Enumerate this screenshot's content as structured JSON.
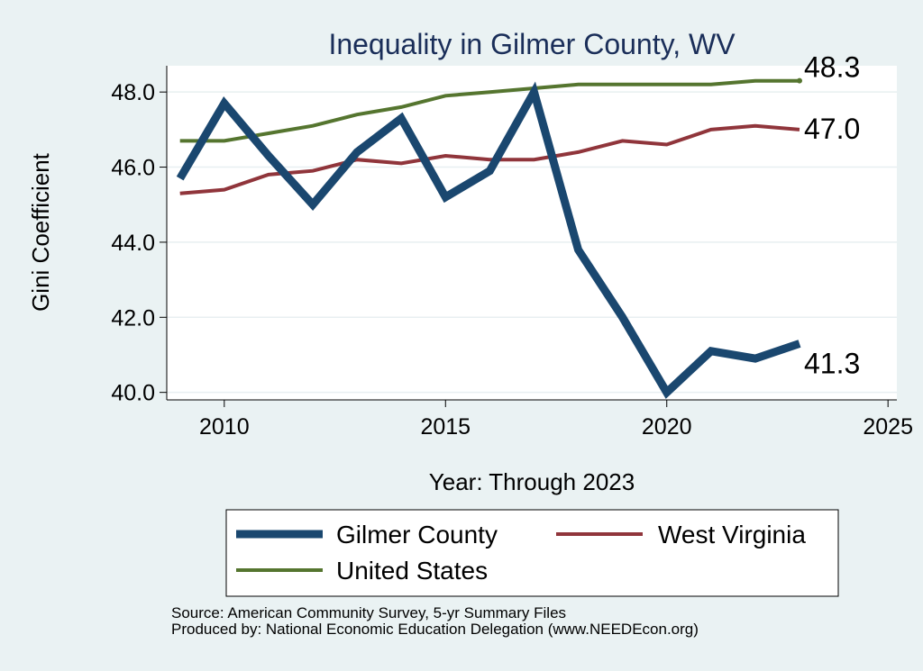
{
  "chart_data": {
    "type": "line",
    "title": "Inequality in Gilmer County, WV",
    "xlabel": "Year: Through 2023",
    "ylabel": "Gini Coefficient",
    "xlim": [
      2008.7,
      2025.2
    ],
    "ylim": [
      39.8,
      48.7
    ],
    "xticks": [
      2010,
      2015,
      2020,
      2025
    ],
    "yticks": [
      40.0,
      42.0,
      44.0,
      46.0,
      48.0
    ],
    "grid": true,
    "legend_position": "bottom",
    "x": [
      2009,
      2010,
      2011,
      2012,
      2013,
      2014,
      2015,
      2016,
      2017,
      2018,
      2019,
      2020,
      2021,
      2022,
      2023
    ],
    "series": [
      {
        "name": "Gilmer County",
        "color": "#1a476f",
        "values": [
          45.7,
          47.7,
          46.3,
          45.0,
          46.4,
          47.3,
          45.2,
          45.9,
          48.0,
          43.8,
          42.0,
          40.0,
          41.1,
          40.9,
          41.3
        ],
        "end_label": "41.3"
      },
      {
        "name": "West Virginia",
        "color": "#90353b",
        "values": [
          45.3,
          45.4,
          45.8,
          45.9,
          46.2,
          46.1,
          46.3,
          46.2,
          46.2,
          46.4,
          46.7,
          46.6,
          47.0,
          47.1,
          47.0
        ],
        "end_label": "47.0"
      },
      {
        "name": "United States",
        "color": "#55752f",
        "values": [
          46.7,
          46.7,
          46.9,
          47.1,
          47.4,
          47.6,
          47.9,
          48.0,
          48.1,
          48.2,
          48.2,
          48.2,
          48.2,
          48.3,
          48.3
        ],
        "end_label": "48.3"
      }
    ]
  },
  "footer": {
    "source": "Source: American Community Survey, 5-yr Summary Files",
    "producer": "Produced by: National Economic Education Delegation (www.NEEDEcon.org)"
  }
}
